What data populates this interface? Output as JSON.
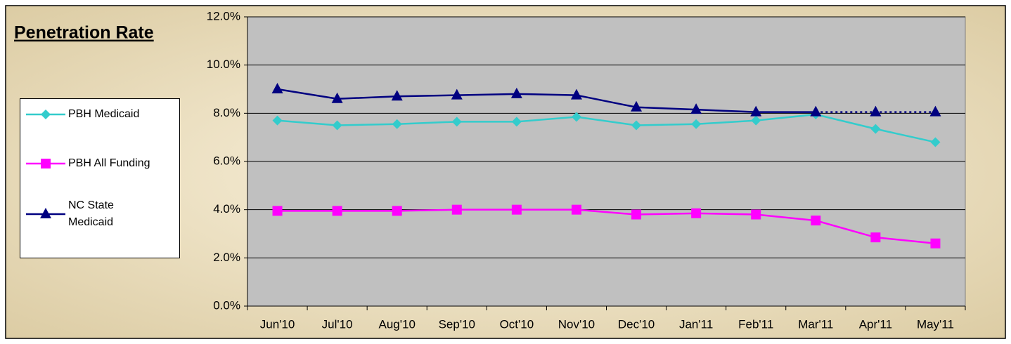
{
  "chart_data": {
    "type": "line",
    "title": "Penetration Rate",
    "categories": [
      "Jun'10",
      "Jul'10",
      "Aug'10",
      "Sep'10",
      "Oct'10",
      "Nov'10",
      "Dec'10",
      "Jan'11",
      "Feb'11",
      "Mar'11",
      "Apr'11",
      "May'11"
    ],
    "series": [
      {
        "name": "PBH Medicaid",
        "color": "#33cccc",
        "marker": "diamond",
        "values": [
          7.7,
          7.5,
          7.55,
          7.65,
          7.65,
          7.85,
          7.5,
          7.55,
          7.7,
          7.95,
          7.35,
          6.8
        ]
      },
      {
        "name": "PBH All Funding",
        "color": "#ff00ff",
        "marker": "square",
        "values": [
          3.95,
          3.95,
          3.95,
          4.0,
          4.0,
          4.0,
          3.8,
          3.85,
          3.8,
          3.55,
          2.85,
          2.6
        ]
      },
      {
        "name": "NC State Medicaid",
        "color": "#000080",
        "marker": "triangle",
        "dotted_from": 9,
        "values": [
          9.0,
          8.6,
          8.7,
          8.75,
          8.8,
          8.75,
          8.25,
          8.15,
          8.05,
          8.05,
          8.05,
          8.05
        ]
      }
    ],
    "ylim": [
      0,
      12
    ],
    "yticks": [
      {
        "value": 0,
        "label": "0.0%"
      },
      {
        "value": 2,
        "label": "2.0%"
      },
      {
        "value": 4,
        "label": "4.0%"
      },
      {
        "value": 6,
        "label": "6.0%"
      },
      {
        "value": 8,
        "label": "8.0%"
      },
      {
        "value": 10,
        "label": "10.0%"
      },
      {
        "value": 12,
        "label": "12.0%"
      }
    ],
    "grid": true,
    "legend": "left"
  }
}
